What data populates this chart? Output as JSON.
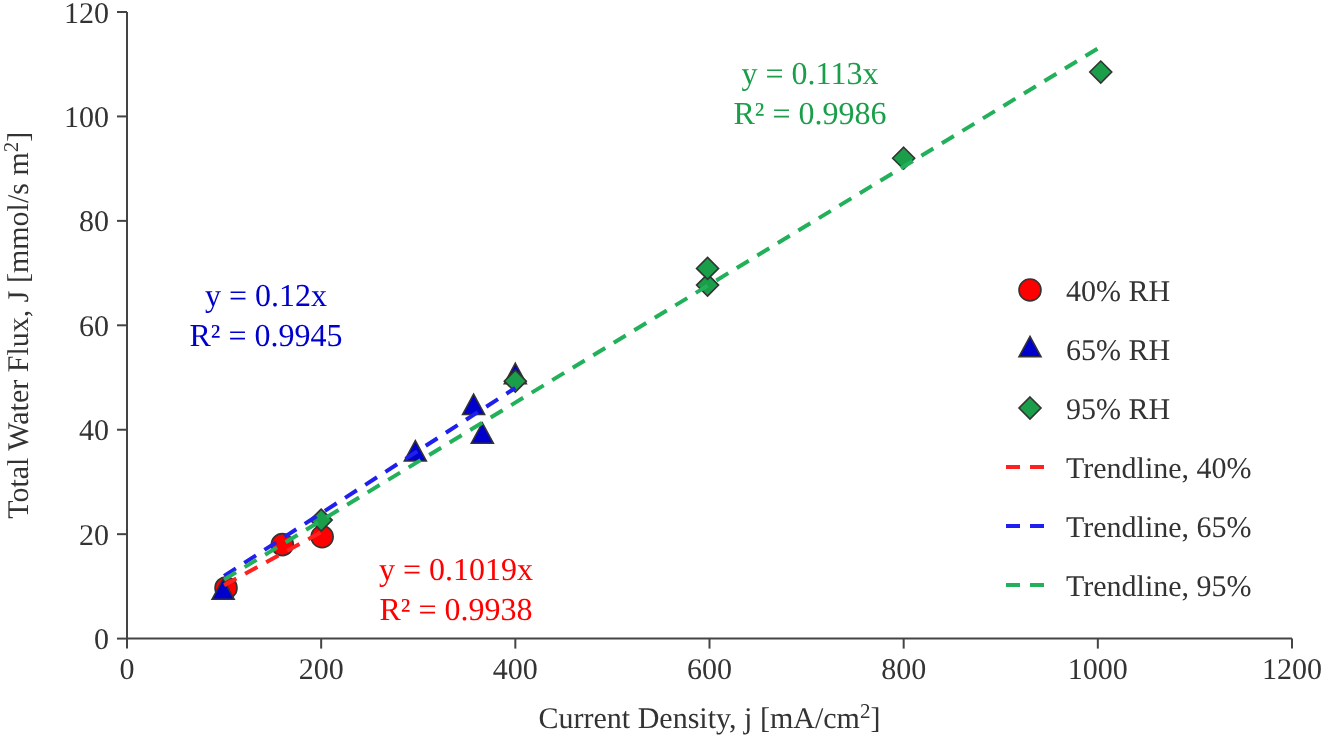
{
  "chart_data": {
    "type": "scatter",
    "xlabel": "Current Density, j [mA/cm$^{2}$]",
    "ylabel": "Total Water Flux, J [mmol/s m$^{2}$]",
    "xlim": [
      0,
      1200
    ],
    "xticks": [
      0,
      200,
      400,
      600,
      800,
      1000,
      1200
    ],
    "ylim": [
      0,
      120
    ],
    "yticks": [
      0,
      20,
      40,
      60,
      80,
      100,
      120
    ],
    "grid": false,
    "legend": "right",
    "series": [
      {
        "name": "40% RH",
        "marker": "circle",
        "color": "#ff0000",
        "x": [
          102,
          160,
          201
        ],
        "values": [
          9.7,
          18,
          19.5
        ]
      },
      {
        "name": "65% RH",
        "marker": "triangle",
        "color": "#0000cc",
        "x": [
          99,
          297,
          357,
          366,
          400
        ],
        "values": [
          9,
          35.5,
          44.4,
          38.9,
          50.3
        ]
      },
      {
        "name": "95% RH",
        "marker": "diamond",
        "color": "#1a9e4a",
        "x": [
          200,
          400,
          598,
          598,
          800,
          1003
        ],
        "values": [
          22.7,
          49.3,
          67.7,
          70.9,
          92,
          108.5
        ]
      },
      {
        "name": "Trendline, 40%",
        "type": "line",
        "line_style": "dashed",
        "color": "#ff2020",
        "x": [
          100,
          200
        ],
        "values": [
          10.2,
          20.4
        ]
      },
      {
        "name": "Trendline, 65%",
        "type": "line",
        "line_style": "dashed",
        "color": "#2020ee",
        "x": [
          100,
          400
        ],
        "values": [
          12,
          48
        ]
      },
      {
        "name": "Trendline, 95%",
        "type": "line",
        "line_style": "dashed",
        "color": "#22b05a",
        "x": [
          100,
          1000
        ],
        "values": [
          11.3,
          113
        ]
      }
    ],
    "annotations": [
      "y = 0.1019x\nR² = 0.9938",
      "y = 0.12x\nR² = 0.9945",
      "y = 0.113x\nR² = 0.9986"
    ]
  }
}
